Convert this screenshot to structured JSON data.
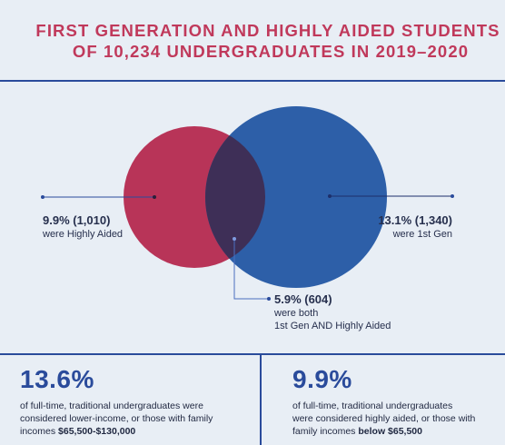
{
  "header": {
    "title_line1": "FIRST GENERATION AND HIGHLY AIDED STUDENTS",
    "title_line2": "OF 10,234 UNDERGRADUATES IN 2019–2020"
  },
  "venn": {
    "colors": {
      "highly_aided": "#b83458",
      "first_gen": "#2d5fa8",
      "overlap": "#3e2f57",
      "leader": "#2a4b9b"
    },
    "highly_aided": {
      "value": "9.9% (1,010)",
      "caption": "were Highly Aided"
    },
    "first_gen": {
      "value": "13.1% (1,340)",
      "caption": "were 1st Gen"
    },
    "both": {
      "value": "5.9% (604)",
      "caption_line1": "were both",
      "caption_line2": "1st Gen AND Highly Aided"
    }
  },
  "stats": {
    "left": {
      "value": "13.6%",
      "text_line1": "of full-time, traditional undergraduates were",
      "text_line2": "considered lower-income, or those with family",
      "text_line3_prefix": "incomes ",
      "text_line3_bold": "$65,500-$130,000"
    },
    "right": {
      "value": "9.9%",
      "text_line1": "of full-time, traditional undergraduates",
      "text_line2": "were considered highly aided, or those with",
      "text_line3_prefix": "family incomes ",
      "text_line3_bold": "below $65,500"
    }
  }
}
